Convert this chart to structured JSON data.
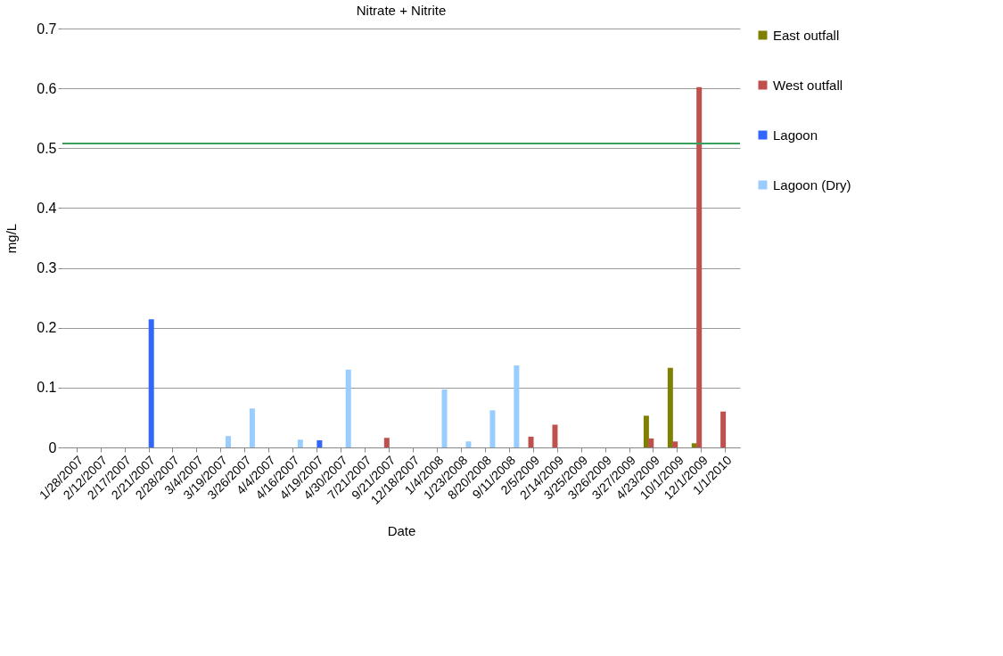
{
  "chart_data": {
    "type": "bar",
    "title": "Nitrate + Nitrite",
    "xlabel": "Date",
    "ylabel": "mg/L",
    "categories": [
      "1/28/2007",
      "2/12/2007",
      "2/17/2007",
      "2/21/2007",
      "2/28/2007",
      "3/4/2007",
      "3/19/2007",
      "3/26/2007",
      "4/4/2007",
      "4/16/2007",
      "4/19/2007",
      "4/30/2007",
      "7/21/2007",
      "9/21/2007",
      "12/18/2007",
      "1/4/2008",
      "1/23/2008",
      "8/20/2008",
      "9/11/2008",
      "2/5/2009",
      "2/14/2009",
      "3/25/2009",
      "3/26/2009",
      "3/27/2009",
      "4/23/2009",
      "10/1/2009",
      "12/1/2009",
      "1/1/2010"
    ],
    "series": [
      {
        "name": "East outfall",
        "color": "#808000",
        "values": [
          null,
          null,
          null,
          null,
          null,
          null,
          null,
          null,
          null,
          null,
          null,
          null,
          null,
          null,
          null,
          null,
          null,
          null,
          null,
          null,
          null,
          null,
          null,
          null,
          0.053,
          0.133,
          0.007,
          null
        ]
      },
      {
        "name": "West outfall",
        "color": "#c0504d",
        "values": [
          null,
          null,
          null,
          null,
          null,
          null,
          null,
          null,
          null,
          null,
          null,
          null,
          null,
          0.016,
          null,
          null,
          null,
          null,
          null,
          0.018,
          0.038,
          null,
          null,
          null,
          0.015,
          0.01,
          0.602,
          0.06
        ]
      },
      {
        "name": "Lagoon",
        "color": "#3366ff",
        "values": [
          null,
          null,
          null,
          0.214,
          null,
          null,
          null,
          null,
          null,
          null,
          0.012,
          null,
          null,
          null,
          null,
          null,
          null,
          null,
          null,
          null,
          null,
          null,
          null,
          null,
          null,
          null,
          null,
          null
        ]
      },
      {
        "name": "Lagoon (Dry)",
        "color": "#99ccff",
        "values": [
          null,
          null,
          null,
          null,
          null,
          null,
          0.019,
          0.065,
          null,
          0.013,
          null,
          0.13,
          null,
          null,
          null,
          0.097,
          0.01,
          0.062,
          0.137,
          null,
          null,
          null,
          null,
          null,
          null,
          null,
          null,
          null
        ]
      }
    ],
    "ylim": [
      0,
      0.7
    ],
    "yticks": [
      {
        "value": 0,
        "label": "0"
      },
      0.1,
      0.2,
      0.3,
      0.4,
      0.5,
      0.6,
      0.7
    ],
    "grid": "y",
    "legend": "right",
    "ref_lines": [
      {
        "axis": "y",
        "value": 0.508,
        "color": "#3a9e5c"
      }
    ]
  }
}
